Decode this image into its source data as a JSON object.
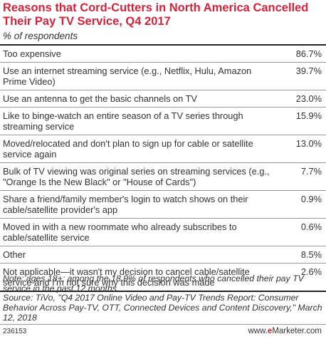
{
  "chart_data": {
    "type": "table",
    "title": "Reasons that Cord-Cutters in North America Cancelled Their Pay TV Service, Q4 2017",
    "subtitle": "% of respondents",
    "rows": [
      {
        "label": "Too expensive",
        "value": "86.7%"
      },
      {
        "label": "Use an internet streaming service (e.g., Netflix, Hulu, Amazon Prime Video)",
        "value": "39.7%"
      },
      {
        "label": "Use an antenna to get the basic channels on TV",
        "value": "23.0%"
      },
      {
        "label": "Like to binge-watch an entire season of a TV series through streaming service",
        "value": "15.9%"
      },
      {
        "label": "Moved/relocated and don't plan to sign up for cable or satellite service again",
        "value": "13.0%"
      },
      {
        "label": "Bulk of TV viewing was original series on streaming services (e.g., \"Orange Is the New Black\" or \"House of Cards\")",
        "value": "7.7%"
      },
      {
        "label": "Share a friend/family member's login to watch shows on their cable/satellite provider's app",
        "value": "0.9%"
      },
      {
        "label": "Moved in with a new roommate who already subscribes to cable/satellite service",
        "value": "0.6%"
      },
      {
        "label": "Other",
        "value": "8.5%"
      },
      {
        "label": "Not applicable—it wasn't my decision to cancel cable/satellite service and I'm not sure why this decision was made",
        "value": "2.6%"
      }
    ],
    "note": "Note: ages 18+; among the 18.9% of respondents who cancelled their pay TV service in the past 12 months",
    "source": "Source: TiVo, \"Q4 2017 Online Video and Pay-TV Trends Report: Consumer Behavior Across Pay-TV, OTT, Connected Devices and Content Discovery,\" March 12, 2018"
  },
  "footer": {
    "chart_id": "236153",
    "brand_prefix": "www.",
    "brand_e": "e",
    "brand_rest": "Marketer",
    "brand_suffix": ".com"
  },
  "colors": {
    "title": "#d0243c",
    "text": "#333333",
    "rule": "#9a9a9a"
  }
}
